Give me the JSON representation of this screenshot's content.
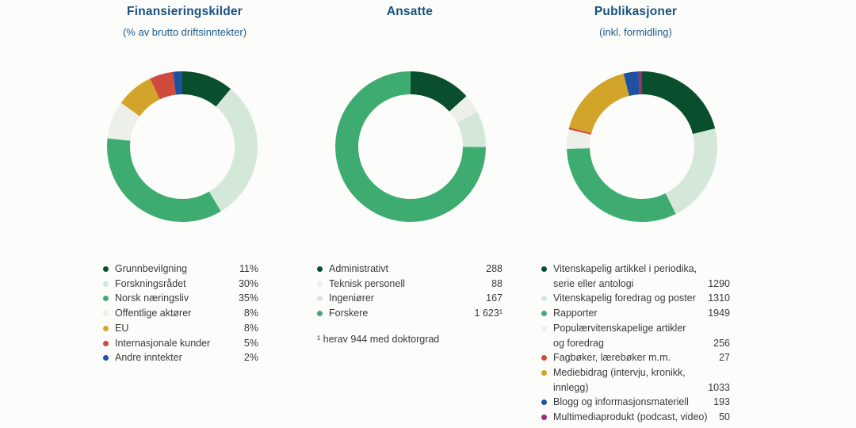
{
  "palette": {
    "background": "#FCFCFA",
    "title_blue": "#1A5280",
    "subtitle_blue": "#1D5C8E",
    "text_gray": "#3A3A3A",
    "dark_green": "#0A4F2D",
    "mint_green": "#D4E8DA",
    "medium_green": "#3EAC71",
    "off_white": "#EDEFE9",
    "gold": "#D2A42A",
    "red": "#CE4B3E",
    "blue": "#1E52A0",
    "plum": "#9B2D70"
  },
  "chart_data": [
    {
      "type": "pie",
      "donut": true,
      "legend_position": "bottom",
      "title": "Finansieringskilder",
      "subtitle": "(% av brutto driftsinntekter)",
      "categories": [
        "Grunnbevilgning",
        "Forskningsrådet",
        "Norsk næringsliv",
        "Offentlige aktører",
        "EU",
        "Internasjonale kunder",
        "Andre inntekter"
      ],
      "values": [
        11,
        30,
        35,
        8,
        8,
        5,
        2
      ],
      "value_labels": [
        "11%",
        "30%",
        "35%",
        "8%",
        "8%",
        "5%",
        "2%"
      ],
      "colors": [
        "#0A4F2D",
        "#D4E8DA",
        "#3EAC71",
        "#EDEFE9",
        "#D2A42A",
        "#CE4B3E",
        "#1E52A0"
      ],
      "footnote": ""
    },
    {
      "type": "pie",
      "donut": true,
      "legend_position": "bottom",
      "title": "Ansatte",
      "subtitle": "",
      "categories": [
        "Administrativt",
        "Teknisk personell",
        "Ingeniører",
        "Forskere"
      ],
      "values": [
        288,
        88,
        167,
        1623
      ],
      "value_labels": [
        "288",
        "88",
        "167",
        "1 623¹"
      ],
      "colors": [
        "#0A4F2D",
        "#EDEFE9",
        "#D4E8DA",
        "#3EAC71"
      ],
      "footnote": "¹ herav 944 med doktorgrad"
    },
    {
      "type": "pie",
      "donut": true,
      "legend_position": "bottom",
      "title": "Publikasjoner",
      "subtitle": "(inkl. formidling)",
      "categories": [
        "Vitenskapelig artikkel i periodika, serie eller antologi",
        "Vitenskapelig foredrag og poster",
        "Rapporter",
        "Populærvitenskapelige artikler og foredrag",
        "Fagbøker, lærebøker m.m.",
        "Mediebidrag (intervju, kronikk, innlegg)",
        "Blogg og informasjonsmateriell",
        "Multimediaprodukt (podcast, video)"
      ],
      "legend_labels": [
        "Vitenskapelig artikkel i periodika,\nserie eller antologi",
        "Vitenskapelig foredrag og poster",
        "Rapporter",
        "Populærvitenskapelige artikler\nog foredrag",
        "Fagbøker, lærebøker m.m.",
        "Mediebidrag (intervju, kronikk,\ninnlegg)",
        "Blogg og informasjonsmateriell",
        "Multimediaprodukt (podcast, video)"
      ],
      "values": [
        1290,
        1310,
        1949,
        256,
        27,
        1033,
        193,
        50
      ],
      "value_labels": [
        "1290",
        "1310",
        "1949",
        "256",
        "27",
        "1033",
        "193",
        "50"
      ],
      "colors": [
        "#0A4F2D",
        "#D4E8DA",
        "#3EAC71",
        "#EDEFE9",
        "#CE4B3E",
        "#D2A42A",
        "#1E52A0",
        "#9B2D70"
      ],
      "footnote": ""
    }
  ]
}
